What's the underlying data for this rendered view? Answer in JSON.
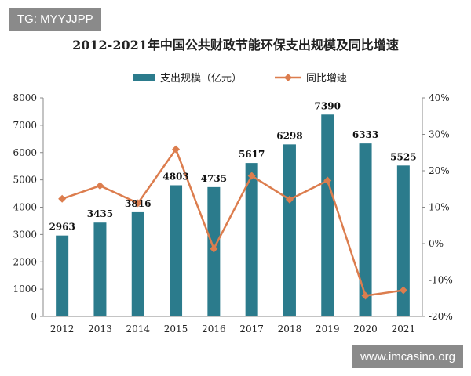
{
  "watermarks": {
    "top_left": "TG: MYYJJPP",
    "bottom_right": "www.imcasino.org"
  },
  "chart_data": {
    "type": "bar+line",
    "title": "2012-2021年中国公共财政节能环保支出规模及同比增速",
    "categories": [
      "2012",
      "2013",
      "2014",
      "2015",
      "2016",
      "2017",
      "2018",
      "2019",
      "2020",
      "2021"
    ],
    "series": [
      {
        "name": "支出规模（亿元）",
        "type": "bar",
        "axis": "left",
        "color": "#2b7b8c",
        "values": [
          2963,
          3435,
          3816,
          4803,
          4735,
          5617,
          6298,
          7390,
          6333,
          5525
        ]
      },
      {
        "name": "同比增速",
        "type": "line",
        "axis": "right",
        "color": "#dc7d4e",
        "values": [
          12.3,
          15.9,
          11.1,
          25.9,
          -1.4,
          18.6,
          12.1,
          17.3,
          -14.3,
          -12.8
        ]
      }
    ],
    "left_axis": {
      "ylim": [
        0,
        8000
      ],
      "ticks": [
        0,
        1000,
        2000,
        3000,
        4000,
        5000,
        6000,
        7000,
        8000
      ]
    },
    "right_axis": {
      "ylim": [
        -20,
        40
      ],
      "ticks": [
        "-20%",
        "-10%",
        "0%",
        "10%",
        "20%",
        "30%",
        "40%"
      ]
    },
    "legend": "top",
    "grid": false
  }
}
